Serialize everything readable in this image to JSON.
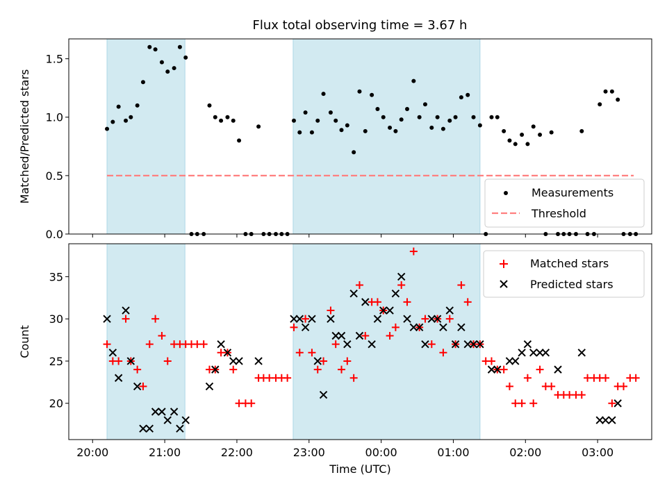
{
  "title": "Flux total observing time = 3.67 h",
  "colors": {
    "shade": "#add8e6",
    "measurement": "#000000",
    "threshold": "#ff7f7f",
    "matched": "#ff0000",
    "predicted": "#000000"
  },
  "chart_data": [
    {
      "type": "scatter",
      "ylabel": "Matched/Predicted stars",
      "xlim": [
        -0.33,
        7.75
      ],
      "ylim": [
        0,
        1.67
      ],
      "yticks": [
        0.0,
        0.5,
        1.0,
        1.5
      ],
      "ytick_labels": [
        "0.0",
        "0.5",
        "1.0",
        "1.5"
      ],
      "shaded_intervals": [
        [
          0.2,
          1.28
        ],
        [
          2.78,
          5.37
        ]
      ],
      "threshold": {
        "name": "Threshold",
        "y": 0.5,
        "x_range": [
          0.2,
          7.5
        ],
        "style": "dashed"
      },
      "legend": {
        "position": "lower-right",
        "entries": [
          "Measurements",
          "Threshold"
        ]
      },
      "series": [
        {
          "name": "Measurements",
          "marker": "dot",
          "x": [
            0.2,
            0.28,
            0.36,
            0.46,
            0.53,
            0.62,
            0.7,
            0.79,
            0.87,
            0.96,
            1.04,
            1.13,
            1.21,
            1.29,
            1.37,
            1.45,
            1.54,
            1.62,
            1.7,
            1.78,
            1.87,
            1.95,
            2.03,
            2.12,
            2.2,
            2.3,
            2.37,
            2.45,
            2.54,
            2.62,
            2.7,
            2.79,
            2.87,
            2.95,
            3.04,
            3.12,
            3.2,
            3.3,
            3.37,
            3.45,
            3.53,
            3.62,
            3.7,
            3.78,
            3.87,
            3.95,
            4.03,
            4.12,
            4.2,
            4.28,
            4.36,
            4.45,
            4.53,
            4.61,
            4.7,
            4.78,
            4.86,
            4.95,
            5.03,
            5.11,
            5.2,
            5.28,
            5.37,
            5.45,
            5.53,
            5.61,
            5.7,
            5.78,
            5.86,
            5.95,
            6.03,
            6.11,
            6.2,
            6.28,
            6.36,
            6.45,
            6.53,
            6.61,
            6.7,
            6.78,
            6.86,
            6.95,
            7.03,
            7.11,
            7.2,
            7.28,
            7.36,
            7.45,
            7.53
          ],
          "y": [
            0.9,
            0.96,
            1.09,
            0.97,
            1.0,
            1.1,
            1.3,
            1.6,
            1.58,
            1.47,
            1.39,
            1.42,
            1.6,
            1.51,
            0.0,
            0.0,
            0.0,
            1.1,
            1.0,
            0.97,
            1.0,
            0.97,
            0.8,
            0.0,
            0.0,
            0.92,
            0.0,
            0.0,
            0.0,
            0.0,
            0.0,
            0.97,
            0.87,
            1.04,
            0.87,
            0.97,
            1.2,
            1.04,
            0.97,
            0.89,
            0.93,
            0.7,
            1.22,
            0.88,
            1.19,
            1.07,
            1.0,
            0.91,
            0.88,
            0.98,
            1.07,
            1.31,
            1.0,
            1.11,
            0.91,
            1.0,
            0.9,
            0.97,
            1.0,
            1.17,
            1.19,
            1.0,
            0.93,
            0.0,
            1.0,
            1.0,
            0.88,
            0.8,
            0.77,
            0.85,
            0.77,
            0.92,
            0.85,
            0.0,
            0.87,
            0.0,
            0.0,
            0.0,
            0.0,
            0.88,
            0.0,
            0.0,
            1.11,
            1.22,
            1.22,
            1.15,
            0.0,
            0.0,
            0.0
          ]
        }
      ]
    },
    {
      "type": "scatter",
      "title": "",
      "xlabel": "Time (UTC)",
      "ylabel": "Count",
      "xlim": [
        -0.33,
        7.75
      ],
      "ylim": [
        15.7,
        38.9
      ],
      "xticks": [
        0,
        1,
        2,
        3,
        4,
        5,
        6,
        7
      ],
      "xtick_labels": [
        "20:00",
        "21:00",
        "22:00",
        "23:00",
        "00:00",
        "01:00",
        "02:00",
        "03:00"
      ],
      "yticks": [
        20,
        25,
        30,
        35
      ],
      "ytick_labels": [
        "20",
        "25",
        "30",
        "35"
      ],
      "shaded_intervals": [
        [
          0.2,
          1.28
        ],
        [
          2.78,
          5.37
        ]
      ],
      "legend": {
        "position": "upper-right",
        "entries": [
          "Matched stars",
          "Predicted stars"
        ]
      },
      "x": [
        0.2,
        0.28,
        0.36,
        0.46,
        0.53,
        0.62,
        0.7,
        0.79,
        0.87,
        0.96,
        1.04,
        1.13,
        1.21,
        1.29,
        1.37,
        1.45,
        1.54,
        1.62,
        1.7,
        1.78,
        1.87,
        1.95,
        2.03,
        2.12,
        2.2,
        2.3,
        2.37,
        2.45,
        2.54,
        2.62,
        2.7,
        2.79,
        2.87,
        2.95,
        3.04,
        3.12,
        3.2,
        3.3,
        3.37,
        3.45,
        3.53,
        3.62,
        3.7,
        3.78,
        3.87,
        3.95,
        4.03,
        4.12,
        4.2,
        4.28,
        4.36,
        4.45,
        4.53,
        4.61,
        4.7,
        4.78,
        4.86,
        4.95,
        5.03,
        5.11,
        5.2,
        5.28,
        5.37,
        5.45,
        5.53,
        5.61,
        5.7,
        5.78,
        5.86,
        5.95,
        6.03,
        6.11,
        6.2,
        6.28,
        6.36,
        6.45,
        6.53,
        6.61,
        6.7,
        6.78,
        6.86,
        6.95,
        7.03,
        7.11,
        7.2,
        7.28,
        7.36,
        7.45,
        7.53
      ],
      "series": [
        {
          "name": "Matched stars",
          "marker": "plus",
          "values": [
            27,
            25,
            25,
            30,
            25,
            24,
            22,
            27,
            30,
            28,
            25,
            27,
            27,
            27,
            27,
            27,
            27,
            24,
            24,
            26,
            26,
            24,
            20,
            20,
            20,
            23,
            23,
            23,
            23,
            23,
            23,
            29,
            26,
            30,
            26,
            24,
            25,
            31,
            27,
            24,
            25,
            23,
            34,
            28,
            32,
            32,
            31,
            28,
            29,
            34,
            32,
            38,
            29,
            30,
            27,
            30,
            26,
            30,
            27,
            34,
            32,
            27,
            27,
            25,
            25,
            24,
            24,
            22,
            20,
            20,
            23,
            20,
            24,
            22,
            22,
            21,
            21,
            21,
            21,
            21,
            23,
            23,
            23,
            23,
            20,
            22,
            22,
            23,
            23
          ],
          "visible_count": 89
        },
        {
          "name": "Predicted stars",
          "marker": "x",
          "values": [
            30,
            26,
            23,
            31,
            25,
            22,
            17,
            17,
            19,
            19,
            18,
            19,
            17,
            18,
            null,
            null,
            null,
            22,
            24,
            27,
            26,
            25,
            25,
            null,
            null,
            25,
            null,
            null,
            null,
            null,
            null,
            30,
            30,
            29,
            30,
            25,
            21,
            30,
            28,
            28,
            27,
            33,
            28,
            32,
            27,
            30,
            31,
            31,
            33,
            35,
            30,
            29,
            29,
            27,
            30,
            30,
            29,
            31,
            27,
            29,
            27,
            27,
            27,
            null,
            24,
            24,
            null,
            25,
            25,
            26,
            27,
            26,
            26,
            26,
            null,
            24,
            null,
            null,
            null,
            26,
            null,
            null,
            18,
            18,
            18,
            20,
            null,
            null,
            null
          ]
        }
      ]
    }
  ]
}
